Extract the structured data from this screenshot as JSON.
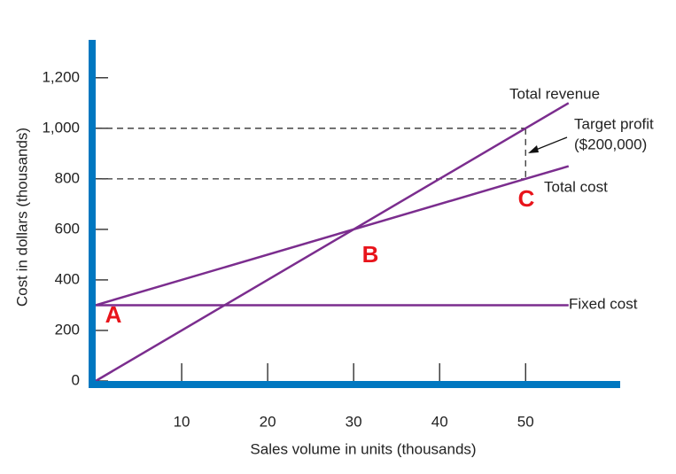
{
  "chart_data": {
    "type": "line",
    "x_label": "Sales volume in units (thousands)",
    "y_label": "Cost in dollars (thousands)",
    "x": [
      0,
      50,
      55
    ],
    "series": [
      {
        "name": "Total revenue",
        "color": "#7b2d8e",
        "values": [
          0,
          1000,
          1100
        ]
      },
      {
        "name": "Total cost",
        "color": "#7b2d8e",
        "values": [
          300,
          800,
          850
        ]
      },
      {
        "name": "Fixed cost",
        "color": "#7b2d8e",
        "values": [
          300,
          300,
          300
        ]
      }
    ],
    "xlim": [
      0,
      61
    ],
    "ylim": [
      0,
      1350
    ],
    "xticks": [
      10,
      20,
      30,
      40,
      50
    ],
    "yticks": [
      0,
      200,
      400,
      600,
      800,
      {
        "value": 1000,
        "label": "1,000"
      },
      {
        "value": 1200,
        "label": "1,200"
      }
    ],
    "axis_color": "#0077c0",
    "annotations": {
      "target_profit": [
        "Target profit",
        "($200,000)"
      ],
      "points": [
        "A",
        "B",
        "C"
      ]
    }
  }
}
